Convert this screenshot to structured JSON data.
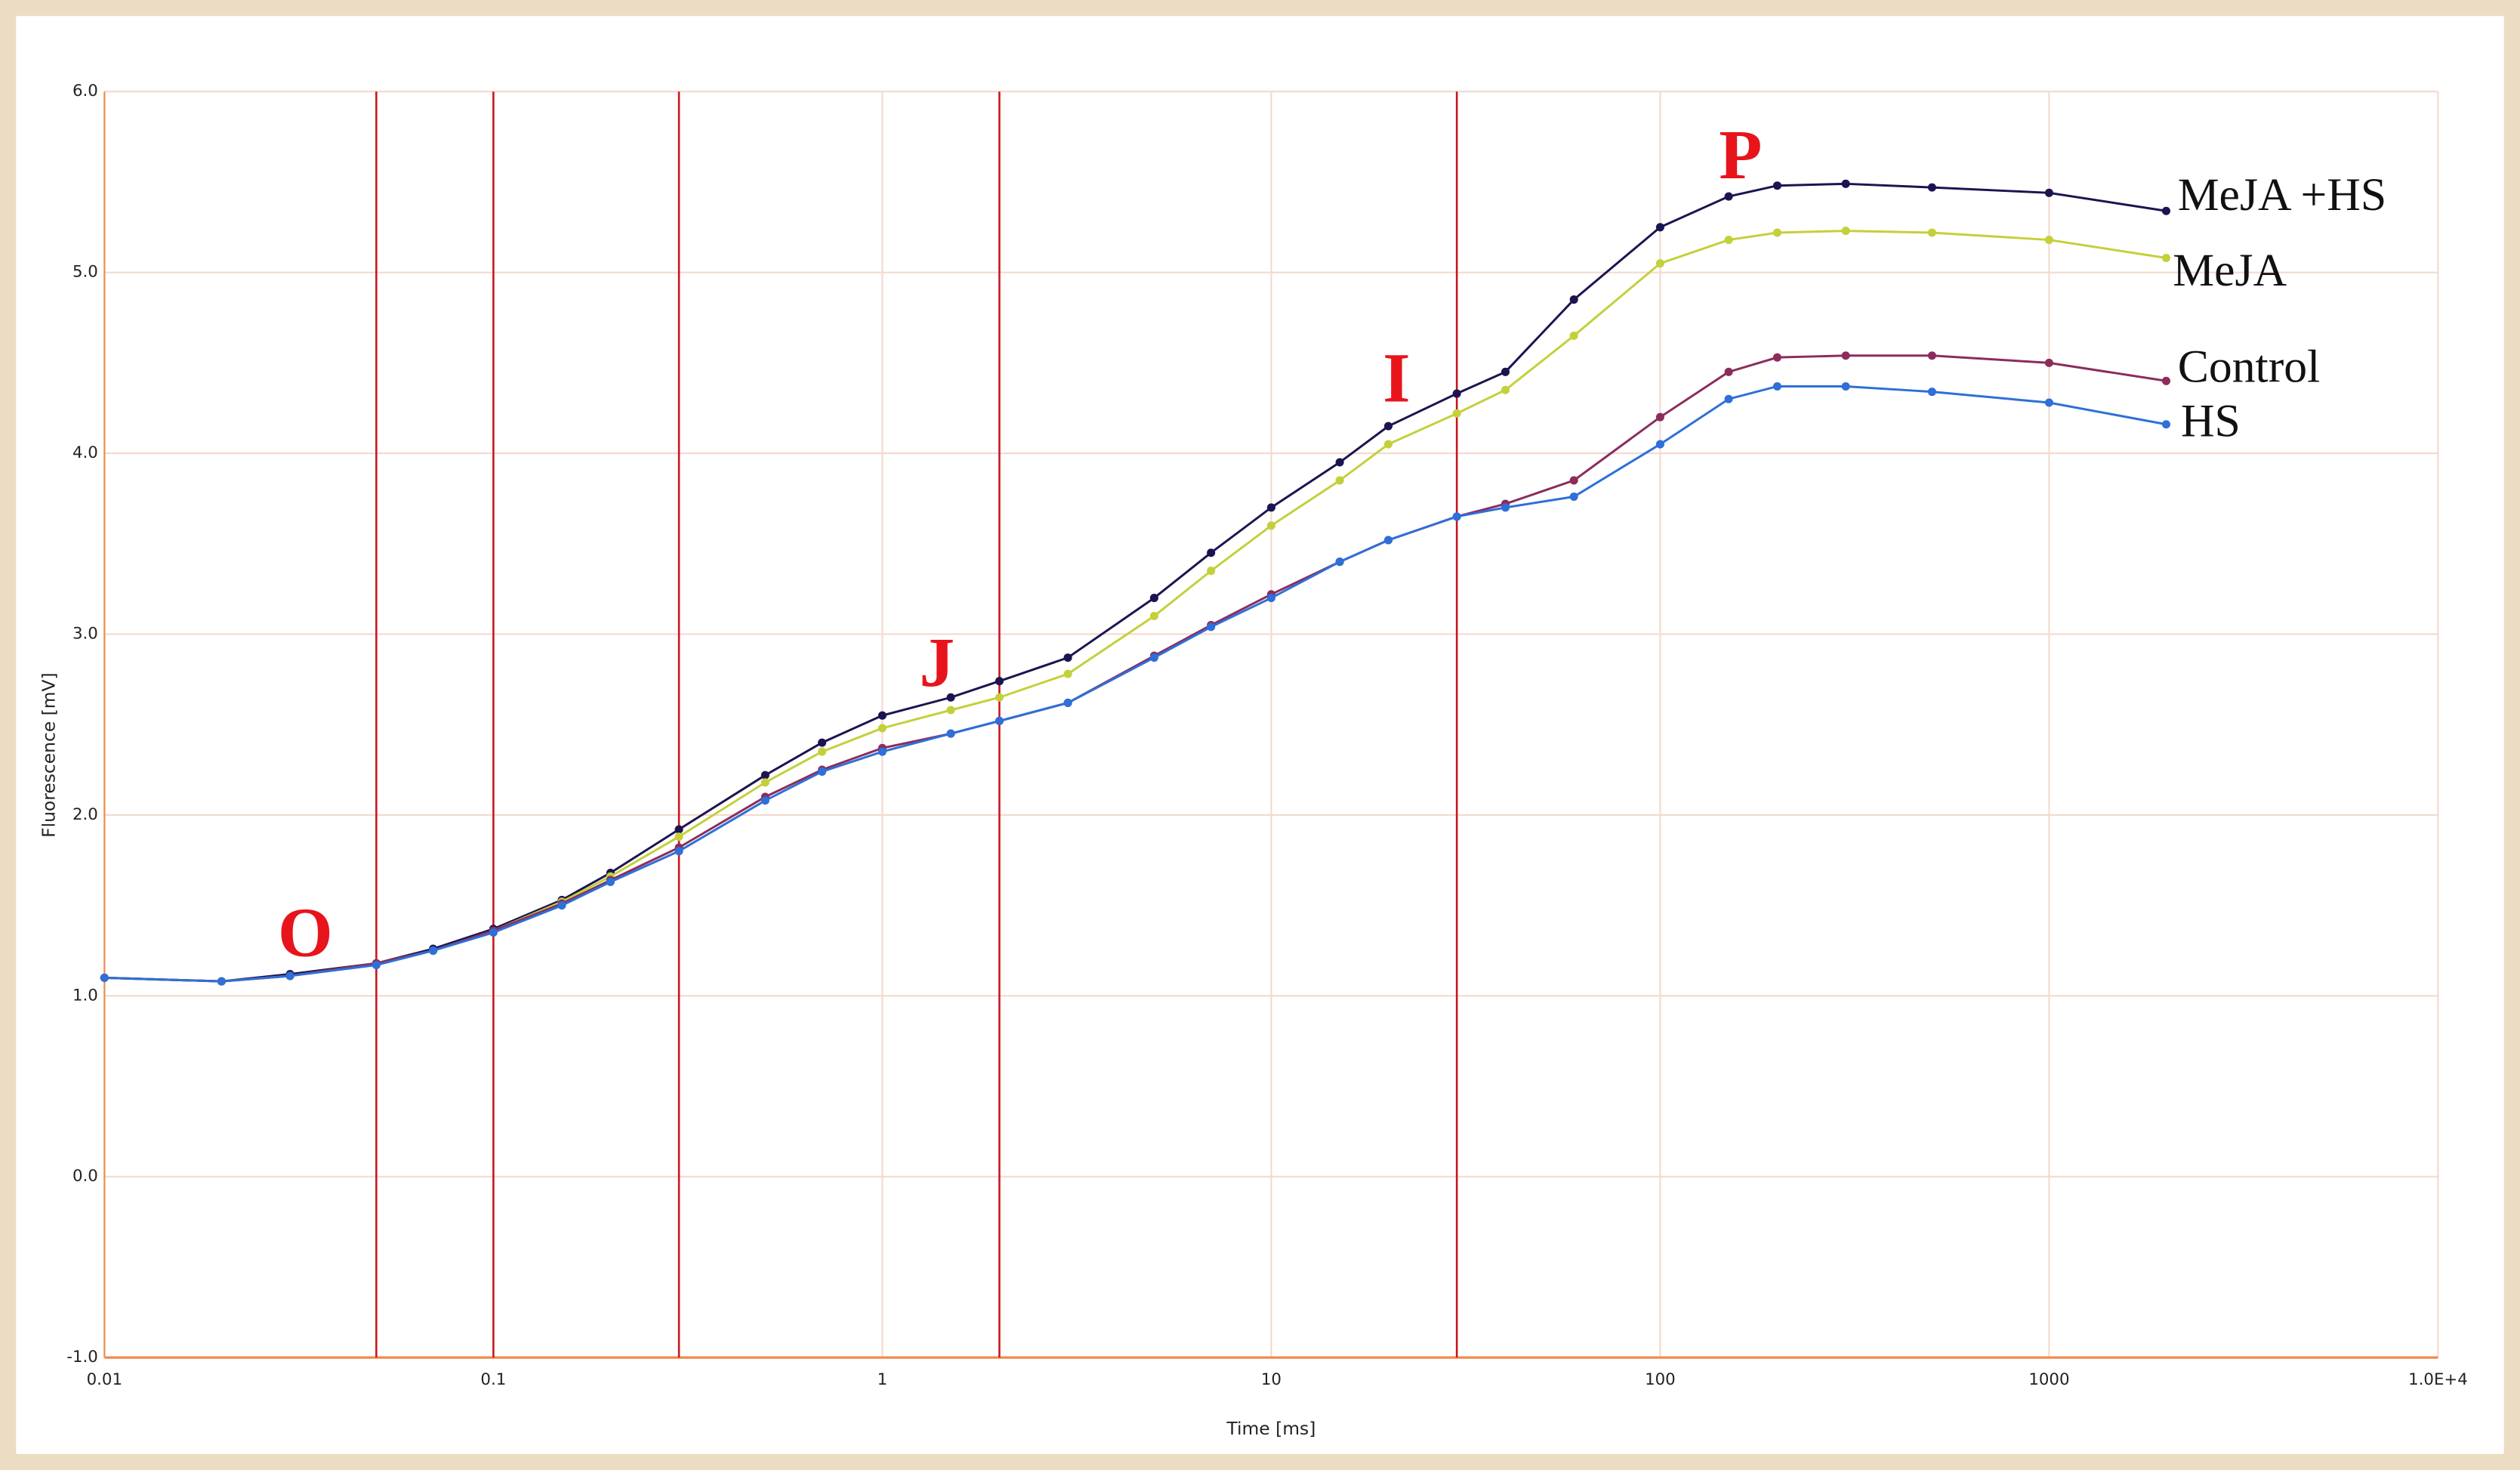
{
  "chart_data": {
    "type": "line",
    "x_label": "Time [ms]",
    "y_label": "Fluorescence [mV]",
    "x_scale": "log",
    "xlim": [
      0.01,
      10000
    ],
    "ylim": [
      -1,
      6
    ],
    "xticks": [
      0.01,
      0.1,
      1,
      10,
      100,
      1000,
      {
        "value": 10000,
        "label": "1.0E+4"
      }
    ],
    "yticks": [
      {
        "value": -1,
        "label": "-1.0"
      },
      {
        "value": 0,
        "label": "0.0"
      },
      {
        "value": 1,
        "label": "1.0"
      },
      {
        "value": 2,
        "label": "2.0"
      },
      {
        "value": 3,
        "label": "3.0"
      },
      {
        "value": 4,
        "label": "4.0"
      },
      {
        "value": 5,
        "label": "5.0"
      },
      {
        "value": 6,
        "label": "6.0"
      }
    ],
    "grid": true,
    "vlines": [
      0.05,
      0.1,
      0.3,
      2,
      30
    ],
    "vline_color": "#c8141c",
    "annotations": [
      "O",
      "J",
      "I",
      "P"
    ],
    "x": [
      0.01,
      0.02,
      0.03,
      0.05,
      0.07,
      0.1,
      0.15,
      0.2,
      0.3,
      0.5,
      0.7,
      1,
      1.5,
      2,
      3,
      5,
      7,
      10,
      15,
      20,
      30,
      40,
      60,
      100,
      150,
      200,
      300,
      500,
      1000,
      2000
    ],
    "series": [
      {
        "name": "MeJA +HS",
        "color": "#1c1450",
        "values": [
          1.1,
          1.08,
          1.12,
          1.18,
          1.26,
          1.37,
          1.53,
          1.68,
          1.92,
          2.22,
          2.4,
          2.55,
          2.65,
          2.74,
          2.87,
          3.2,
          3.45,
          3.7,
          3.95,
          4.15,
          4.33,
          4.45,
          4.85,
          5.25,
          5.42,
          5.48,
          5.49,
          5.47,
          5.44,
          5.34
        ]
      },
      {
        "name": "MeJA",
        "color": "#c4d03a",
        "values": [
          1.1,
          1.08,
          1.11,
          1.18,
          1.25,
          1.36,
          1.52,
          1.66,
          1.88,
          2.18,
          2.35,
          2.48,
          2.58,
          2.65,
          2.78,
          3.1,
          3.35,
          3.6,
          3.85,
          4.05,
          4.22,
          4.35,
          4.65,
          5.05,
          5.18,
          5.22,
          5.23,
          5.22,
          5.18,
          5.08
        ]
      },
      {
        "name": "Control",
        "color": "#8c2c5c",
        "values": [
          1.1,
          1.08,
          1.11,
          1.18,
          1.25,
          1.36,
          1.51,
          1.64,
          1.82,
          2.1,
          2.25,
          2.37,
          2.45,
          2.52,
          2.62,
          2.88,
          3.05,
          3.22,
          3.4,
          3.52,
          3.65,
          3.72,
          3.85,
          4.2,
          4.45,
          4.53,
          4.54,
          4.54,
          4.5,
          4.4
        ]
      },
      {
        "name": "HS",
        "color": "#2e6fd8",
        "values": [
          1.1,
          1.08,
          1.11,
          1.17,
          1.25,
          1.35,
          1.5,
          1.63,
          1.8,
          2.08,
          2.24,
          2.35,
          2.45,
          2.52,
          2.62,
          2.87,
          3.04,
          3.2,
          3.4,
          3.52,
          3.65,
          3.7,
          3.76,
          4.05,
          4.3,
          4.37,
          4.37,
          4.34,
          4.28,
          4.16
        ]
      }
    ]
  }
}
